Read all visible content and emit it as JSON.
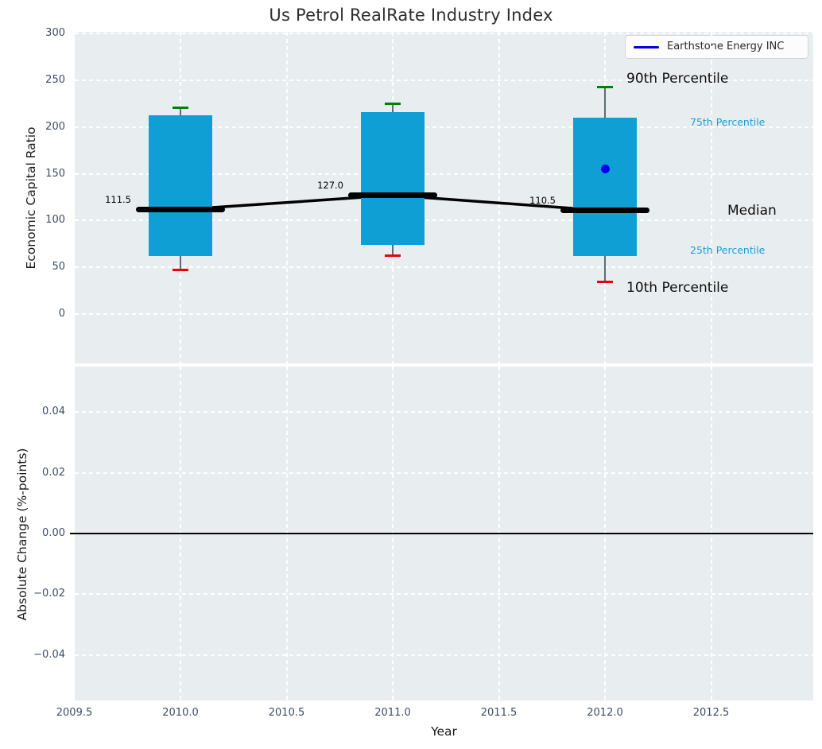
{
  "title": "Us Petrol RealRate Industry Index",
  "legend": {
    "label": "Earthstone Energy INC",
    "line_color": "#0000dd"
  },
  "chart_data": {
    "type": "boxplot-timeseries",
    "title": "Us Petrol RealRate Industry Index",
    "xlabel": "Year",
    "top_panel": {
      "ylabel": "Economic Capital Ratio",
      "ylim": [
        -53,
        302
      ],
      "y_tick_values": [
        300,
        250,
        200,
        150,
        100,
        50,
        0
      ],
      "y_tick_labels": [
        "300",
        "250",
        "200",
        "150",
        "100",
        "50",
        "0"
      ],
      "grid": true
    },
    "bottom_panel": {
      "ylabel": "Absolute Change (%-points)",
      "ylim": [
        -0.055,
        0.055
      ],
      "y_tick_values": [
        0.04,
        0.02,
        0.0,
        -0.02,
        -0.04
      ],
      "y_tick_labels": [
        "0.04",
        "0.02",
        "0.00",
        "−0.02",
        "−0.04"
      ],
      "zero_line_value": 0.0,
      "grid": true,
      "series_values": []
    },
    "xlim": [
      2009.5,
      2012.98
    ],
    "x_tick_values": [
      2009.5,
      2010.0,
      2010.5,
      2011.0,
      2011.5,
      2012.0,
      2012.5
    ],
    "x_tick_labels": [
      "2009.5",
      "2010.0",
      "2010.5",
      "2011.0",
      "2011.5",
      "2012.0",
      "2012.5"
    ],
    "x_grid_years": [
      2010.0,
      2010.5,
      2011.0,
      2011.5,
      2012.0,
      2012.5
    ],
    "boxes": [
      {
        "year": 2010,
        "p10": 47,
        "p25": 62,
        "median": 111.5,
        "p75": 213,
        "p90": 221,
        "median_label": "111.5"
      },
      {
        "year": 2011,
        "p10": 62,
        "p25": 74,
        "median": 127.0,
        "p75": 216,
        "p90": 225,
        "median_label": "127.0"
      },
      {
        "year": 2012,
        "p10": 34,
        "p25": 62,
        "median": 110.5,
        "p75": 210,
        "p90": 243,
        "median_label": "110.5"
      }
    ],
    "median_line_points": [
      {
        "year": 2010,
        "value": 111.5
      },
      {
        "year": 2011,
        "value": 127.0
      },
      {
        "year": 2012,
        "value": 110.5
      }
    ],
    "company_point": {
      "name": "Earthstone Energy INC",
      "year": 2012,
      "value": 155
    },
    "percentile_labels": {
      "p90": "90th Percentile",
      "p75": "75th Percentile",
      "median": "Median",
      "p25": "25th Percentile",
      "p10": "10th Percentile"
    },
    "colors": {
      "box_fill": "#109fd4",
      "whisker": "#5f6d72",
      "cap_top": "#008000",
      "cap_bottom": "#e8000b",
      "median": "#000000",
      "company_point": "#0000ee",
      "cyan_label": "#1b9cd6",
      "axes_bg": "#e8eef0",
      "grid": "#ffffff",
      "tick_text": "#3f4d63",
      "zero_line": "#000000",
      "legend_line": "#0000dd"
    }
  }
}
